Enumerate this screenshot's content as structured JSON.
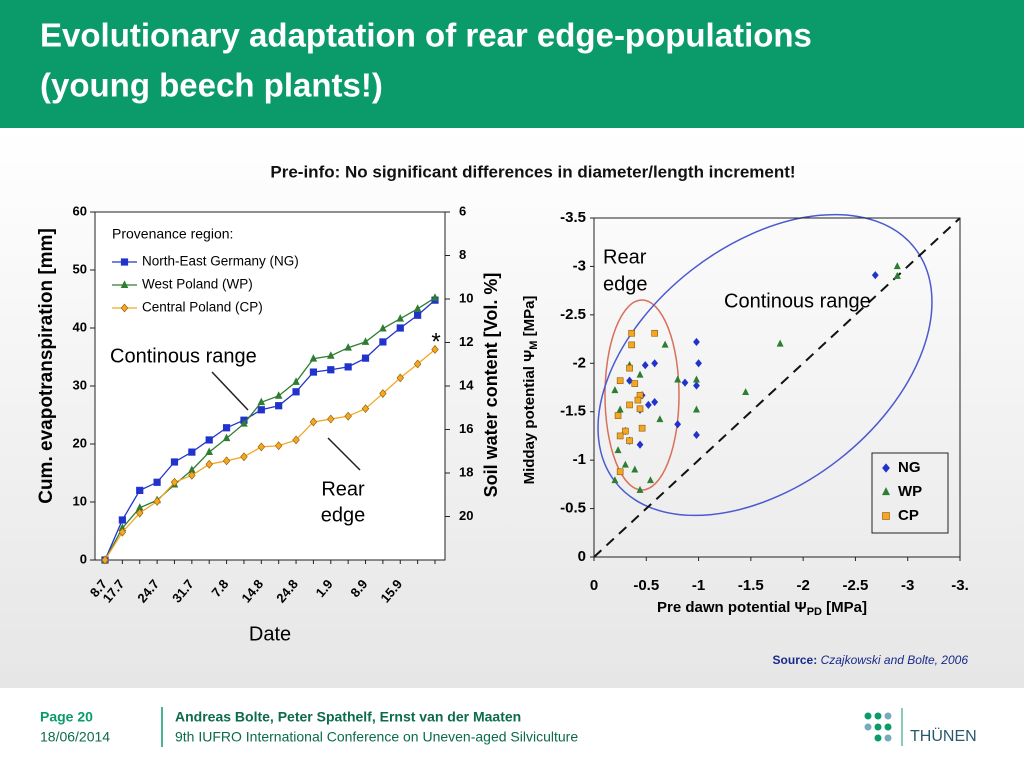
{
  "header": {
    "title": [
      "Evolutionary adaptation of rear edge-populations",
      "(young beech plants!)"
    ]
  },
  "preinfo": "Pre-info: No significant differences in diameter/length increment!",
  "source": {
    "label": "Source:",
    "text": "Czajkowski and Bolte, 2006"
  },
  "footer": {
    "page": "Page 20",
    "date": "18/06/2014",
    "authors": "Andreas Bolte, Peter Spathelf, Ernst van der Maaten",
    "event": "9th IUFRO International Conference on Uneven-aged Silviculture",
    "logo": "THÜNEN"
  },
  "chart_data": [
    {
      "type": "line",
      "xlabel": "Date",
      "ylabel": "Cum. evapotranspiration [mm]",
      "y2label": "Soil water content [Vol. %]",
      "legend_title": "Provenance region:",
      "legend": "upper left",
      "annotations": {
        "continuous": "Continous range",
        "rear": [
          "Rear",
          "edge"
        ],
        "star": "*"
      },
      "categories": [
        "8.7",
        "17.7",
        null,
        "24.7",
        null,
        "31.7",
        null,
        "7.8",
        null,
        "14.8",
        null,
        "24.8",
        null,
        "1.9",
        null,
        "8.9",
        null,
        "15.9",
        null,
        null
      ],
      "ylim": [
        0,
        60
      ],
      "yticks": [
        0,
        10,
        20,
        30,
        40,
        50,
        60
      ],
      "y2lim": [
        22,
        6
      ],
      "y2ticks": [
        6,
        8,
        10,
        12,
        14,
        16,
        18,
        20
      ],
      "series": [
        {
          "name": "North-East Germany (NG)",
          "color": "#2233cc",
          "marker": "square",
          "values": [
            0,
            6.9,
            12,
            13.4,
            16.9,
            18.6,
            20.7,
            22.8,
            24.1,
            25.9,
            26.6,
            29,
            32.4,
            32.8,
            33.3,
            34.8,
            37.6,
            40,
            42.2,
            44.8
          ]
        },
        {
          "name": "West Poland (WP)",
          "color": "#2e7d32",
          "marker": "triangle",
          "values": [
            0,
            5.5,
            9,
            10.3,
            13,
            15.5,
            18.6,
            21,
            23.5,
            27.2,
            28.3,
            30.7,
            34.7,
            35.2,
            36.6,
            37.6,
            39.9,
            41.6,
            43.3,
            45.2
          ]
        },
        {
          "name": "Central Poland (CP)",
          "color": "#f5a623",
          "marker": "diamond",
          "values": [
            0,
            4.8,
            8.1,
            10.1,
            13.4,
            14.6,
            16.5,
            17.1,
            17.8,
            19.5,
            19.7,
            20.7,
            23.8,
            24.3,
            24.8,
            26.1,
            28.7,
            31.4,
            33.8,
            36.3
          ]
        }
      ]
    },
    {
      "type": "scatter",
      "xlabel": {
        "main": "Pre dawn potential Ψ",
        "sub": "PD",
        "unit": " [MPa]"
      },
      "ylabel": {
        "main": "Midday potential Ψ",
        "sub": "M",
        "unit": " [MPa]"
      },
      "legend": "lower right",
      "annotations": {
        "rear": [
          "Rear",
          "edge"
        ],
        "continuous": "Continous range"
      },
      "xlim": [
        0,
        -3.5
      ],
      "xticks": [
        0,
        -0.5,
        -1,
        -1.5,
        -2,
        -2.5,
        -3,
        {
          "value": -3.5,
          "label": "-3."
        }
      ],
      "ylim": [
        0,
        -3.5
      ],
      "yticks": [
        0,
        -0.5,
        -1,
        -1.5,
        -2,
        -2.5,
        -3,
        -3.5
      ],
      "series": [
        {
          "name": "NG",
          "color": "#2233cc",
          "marker": "diamond",
          "x": [
            -0.58,
            -0.49,
            -0.98,
            -1.0,
            -0.87,
            -0.98,
            -0.58,
            -0.52,
            -0.44,
            -0.8,
            -0.98,
            -0.3,
            -0.34,
            -0.44,
            -2.69,
            -0.34,
            -0.46
          ],
          "y": [
            -2.0,
            -1.98,
            -2.22,
            -2.0,
            -1.8,
            -1.77,
            -1.6,
            -1.57,
            -1.52,
            -1.37,
            -1.26,
            -1.3,
            -1.2,
            -1.16,
            -2.91,
            -1.82,
            -1.67
          ]
        },
        {
          "name": "WP",
          "color": "#2e7d32",
          "marker": "triangle",
          "x": [
            -2.9,
            -2.9,
            -1.78,
            -1.45,
            -0.98,
            -0.98,
            -0.8,
            -0.68,
            -0.34,
            -0.25,
            -0.23,
            -0.2,
            -0.44,
            -0.54,
            -0.3,
            -0.63,
            -0.44,
            -0.2,
            -0.39
          ],
          "y": [
            -3.0,
            -2.9,
            -2.2,
            -1.7,
            -1.83,
            -1.52,
            -1.83,
            -2.19,
            -1.98,
            -1.52,
            -1.1,
            -0.79,
            -0.69,
            -0.79,
            -0.95,
            -1.42,
            -1.88,
            -1.72,
            -0.9
          ]
        },
        {
          "name": "CP",
          "color": "#f5a623",
          "marker": "square",
          "x": [
            -0.36,
            -0.58,
            -0.36,
            -0.34,
            -0.25,
            -0.39,
            -0.44,
            -0.42,
            -0.34,
            -0.44,
            -0.3,
            -0.25,
            -0.34,
            -0.25,
            -0.46,
            -0.23
          ],
          "y": [
            -2.31,
            -2.31,
            -2.19,
            -1.95,
            -1.82,
            -1.79,
            -1.67,
            -1.62,
            -1.57,
            -1.53,
            -1.3,
            -1.25,
            -1.2,
            -0.88,
            -1.33,
            -1.46
          ]
        }
      ]
    }
  ]
}
